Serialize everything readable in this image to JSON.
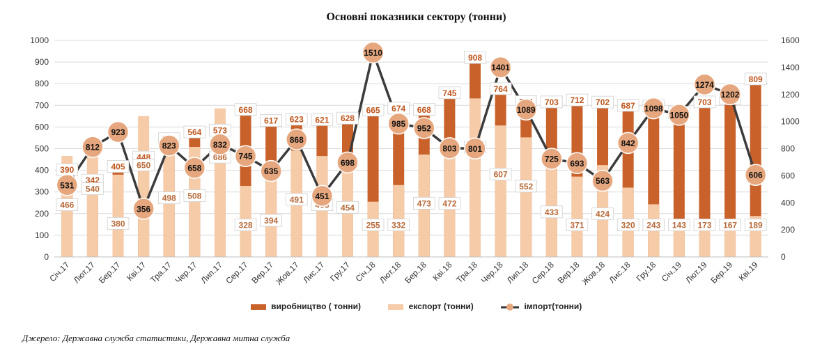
{
  "source_note": "Джерело: Державна служба статистики, Державна митна служба",
  "colors": {
    "production": "#c9622a",
    "export": "#f6cba8",
    "import_line": "#3b3b3b",
    "import_marker": "#e6a77e",
    "production_label": "#c0571e",
    "export_label": "#b86a3a",
    "grid": "#d9d9d9"
  },
  "chart_data": {
    "type": "bar",
    "title": "Основні показники сектору (тонни)",
    "categories": [
      "Січ.17",
      "Лют.17",
      "Бер.17",
      "Кві.17",
      "Тра.17",
      "Чер.17",
      "Лип.17",
      "Сер.17",
      "Вер.17",
      "Жов.17",
      "Лис.17",
      "Гру.17",
      "Січ.18",
      "Лют.18",
      "Бер.18",
      "Кві.18",
      "Тра.18",
      "Чер.18",
      "Лип.18",
      "Сер.18",
      "Вер.18",
      "Жов.18",
      "Лис.18",
      "Гру.18",
      "Січ.19",
      "Лют.19",
      "Бер.19",
      "Кві.19"
    ],
    "series": [
      {
        "name": "виробництво ( тонни)",
        "type": "bar",
        "axis": "left",
        "values": [
          390,
          342,
          405,
          448,
          533,
          564,
          573,
          668,
          617,
          623,
          621,
          628,
          665,
          674,
          668,
          745,
          908,
          764,
          704,
          703,
          712,
          702,
          687,
          684,
          655,
          703,
          718,
          809
        ]
      },
      {
        "name": "експорт (тонни)",
        "type": "bar",
        "axis": "left",
        "values": [
          466,
          540,
          380,
          650,
          498,
          508,
          686,
          328,
          394,
          491,
          466,
          454,
          255,
          332,
          473,
          472,
          732,
          607,
          552,
          433,
          371,
          424,
          320,
          243,
          143,
          173,
          167,
          189
        ]
      },
      {
        "name": "імпорт(тонни)",
        "type": "line",
        "axis": "right",
        "values": [
          531,
          812,
          923,
          356,
          823,
          658,
          832,
          745,
          635,
          868,
          451,
          698,
          1510,
          985,
          952,
          803,
          801,
          1401,
          1089,
          725,
          693,
          563,
          842,
          1098,
          1050,
          1274,
          1202,
          606
        ]
      }
    ],
    "left_axis": {
      "ylim": [
        0,
        1000
      ],
      "ticks": [
        "0",
        "100",
        "200",
        "300",
        "400",
        "500",
        "600",
        "700",
        "800",
        "900",
        "1000"
      ]
    },
    "right_axis": {
      "ylim": [
        0,
        1600
      ],
      "ticks": [
        "0",
        "200",
        "400",
        "600",
        "800",
        "1000",
        "1200",
        "1400",
        "1600"
      ]
    },
    "grid": true,
    "legend_position": "bottom"
  }
}
